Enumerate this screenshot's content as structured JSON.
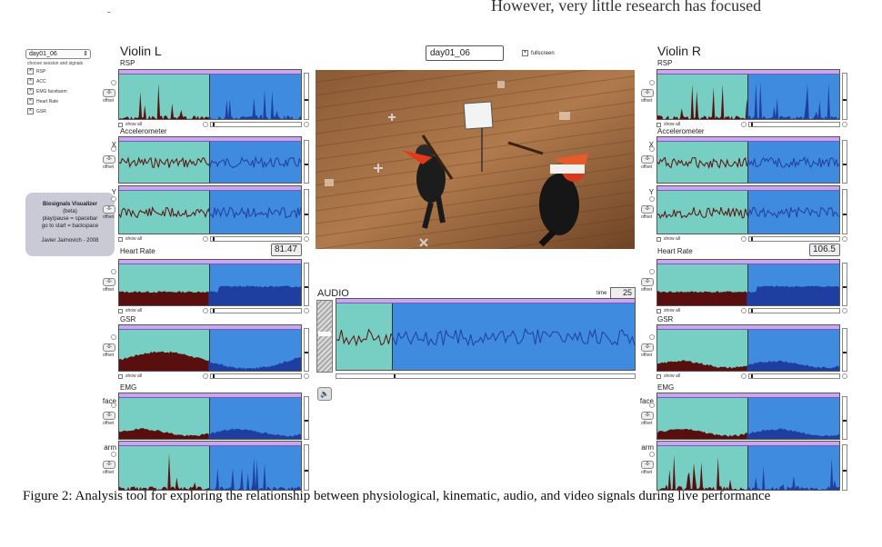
{
  "header": {
    "top_text": "However,  very  little  research  has  focused",
    "top_mark": "-"
  },
  "controls": {
    "session": "day01_06",
    "session_hint": "choose session and signals",
    "signals": [
      "RSP",
      "ACC",
      "EMG facebarm",
      "Heart Rate",
      "GSR"
    ]
  },
  "info": {
    "title": "Biosignals Visualizer",
    "subtitle": "(beta)",
    "line1": "play/pause = spacebar",
    "line2": "go to start = backspace",
    "author": "Javier Jaimovich - 2008"
  },
  "left": {
    "title": "Violin L",
    "rsp": "RSP",
    "accelerometer": "Accelerometer",
    "x": "X",
    "y": "Y",
    "heart_rate": "Heart Rate",
    "heart_rate_value": "81.47",
    "gsr": "GSR",
    "emg": "EMG",
    "face": "face",
    "arm": "arm"
  },
  "right": {
    "title": "Violin R",
    "rsp": "RSP",
    "accelerometer": "Accelerometer",
    "x": "X",
    "y": "Y",
    "heart_rate": "Heart Rate",
    "heart_rate_value": "106.5",
    "gsr": "GSR",
    "emg": "EMG",
    "face": "face",
    "arm": "arm"
  },
  "common": {
    "offset": "offset",
    "show_all": "show all",
    "offset_btn": "-0-"
  },
  "video": {
    "title": "day01_06",
    "fullscreen_label": "fullscreen"
  },
  "audio": {
    "label": "AUDIO",
    "time_label": "time",
    "time_value": "25",
    "speaker_icon": "speaker-icon"
  },
  "caption": "Figure 2: Analysis tool for exploring the relationship between physiological, kinematic, audio, and video signals during live performance",
  "colors": {
    "teal": "#76cfc2",
    "blue": "#3f8be0",
    "strip": "#c9a7ef",
    "trace_dark": "#5a0f0f",
    "trace_blue": "#1f3fa0"
  }
}
